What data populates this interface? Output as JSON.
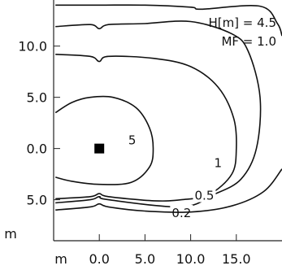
{
  "chart_data": {
    "type": "contour",
    "title": "",
    "xlabel": "",
    "ylabel": "",
    "annotations": [
      "H[m] = 4.5",
      "MF = 1.0"
    ],
    "xlim": [
      -5,
      20
    ],
    "ylim": [
      -9,
      14.5
    ],
    "x_unit_label": "m",
    "y_unit_label": "m",
    "x_ticks": [
      {
        "value": 0,
        "label": "0.0"
      },
      {
        "value": 5,
        "label": "5.0"
      },
      {
        "value": 10,
        "label": "10.0"
      },
      {
        "value": 15,
        "label": "15.0"
      }
    ],
    "y_ticks": [
      {
        "value": 10,
        "label": "10.0"
      },
      {
        "value": 5,
        "label": "5.0"
      },
      {
        "value": 0,
        "label": "0.0"
      },
      {
        "value": -5,
        "label": "5.0"
      }
    ],
    "source_marker": {
      "x": 0,
      "y": 0,
      "label": ""
    },
    "contour_levels": [
      {
        "label": "5",
        "label_at": [
          3.6,
          0.8
        ],
        "points": [
          [
            -4.8,
            3.5
          ],
          [
            -3,
            4.5
          ],
          [
            -1,
            5.0
          ],
          [
            1.5,
            5.0
          ],
          [
            4,
            4.0
          ],
          [
            5.5,
            2.0
          ],
          [
            5.9,
            0
          ],
          [
            5.5,
            -1.8
          ],
          [
            3.5,
            -3.3
          ],
          [
            0,
            -3.5
          ],
          [
            -3,
            -3.2
          ],
          [
            -4.8,
            -2.8
          ]
        ]
      },
      {
        "label": "1",
        "label_at": [
          13.0,
          -1.4
        ],
        "points": [
          [
            -4.8,
            9.2
          ],
          [
            -1,
            9.0
          ],
          [
            0,
            8.5
          ],
          [
            1,
            9.0
          ],
          [
            6,
            8.8
          ],
          [
            10,
            8.0
          ],
          [
            13,
            6.0
          ],
          [
            14.7,
            3.0
          ],
          [
            15,
            0
          ],
          [
            14.5,
            -2.5
          ],
          [
            12,
            -4.5
          ],
          [
            9,
            -5.0
          ],
          [
            6,
            -5.1
          ],
          [
            1,
            -4.7
          ],
          [
            0,
            -4.4
          ],
          [
            -1,
            -4.7
          ],
          [
            -4.8,
            -4.9
          ]
        ]
      },
      {
        "label": "0.5",
        "label_at": [
          11.5,
          -4.6
        ],
        "points": [
          [
            -4.8,
            11.9
          ],
          [
            -1,
            12.1
          ],
          [
            0,
            11.7
          ],
          [
            1,
            12.1
          ],
          [
            5,
            12.2
          ],
          [
            10,
            12.4
          ],
          [
            14.5,
            11.2
          ],
          [
            16.3,
            9.5
          ],
          [
            17.6,
            5.0
          ],
          [
            17.2,
            0
          ],
          [
            15.5,
            -3.0
          ],
          [
            12.5,
            -4.5
          ],
          [
            9,
            -5.7
          ],
          [
            1,
            -5.0
          ],
          [
            0,
            -4.7
          ],
          [
            -1,
            -5.0
          ],
          [
            -4.8,
            -5.3
          ]
        ]
      },
      {
        "label": "0.2",
        "label_at": [
          9.0,
          -6.3
        ],
        "points": [
          [
            -4.8,
            14.0
          ],
          [
            0,
            14.0
          ],
          [
            5,
            14.0
          ],
          [
            10,
            13.8
          ],
          [
            11.2,
            13.6
          ],
          [
            17.6,
            13.9
          ],
          [
            19.5,
            12.2
          ],
          [
            20,
            11.0
          ]
        ]
      },
      {
        "label": "",
        "label_at": null,
        "points": [
          [
            20,
            -2.0
          ],
          [
            18,
            -4.2
          ],
          [
            14.5,
            -5.6
          ],
          [
            10,
            -6.2
          ],
          [
            5,
            -6.1
          ],
          [
            1,
            -5.7
          ],
          [
            0,
            -5.4
          ],
          [
            -1,
            -5.7
          ],
          [
            -4.8,
            -6.0
          ]
        ]
      }
    ],
    "grid": false,
    "legend": "none"
  }
}
